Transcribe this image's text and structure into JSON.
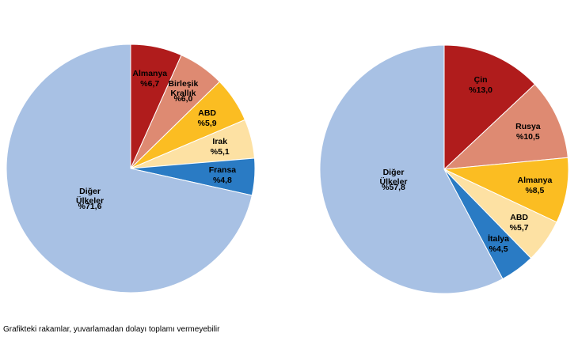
{
  "chart_data": [
    {
      "type": "pie",
      "categories": [
        "Almanya",
        "Birleşik Krallık",
        "ABD",
        "Irak",
        "Fransa",
        "Diğer Ülkeler"
      ],
      "values": [
        6.7,
        6.0,
        5.9,
        5.1,
        4.8,
        71.6
      ],
      "value_labels": [
        "%6,7",
        "%6,0",
        "%5,9",
        "%5,1",
        "%4,8",
        "%71,6"
      ],
      "colors": [
        "#b01c1c",
        "#de8a72",
        "#fbbd22",
        "#fde1a3",
        "#2a7bc4",
        "#a8c1e4"
      ]
    },
    {
      "type": "pie",
      "categories": [
        "Çin",
        "Rusya",
        "Almanya",
        "ABD",
        "İtalya",
        "Diğer Ülkeler"
      ],
      "values": [
        13.0,
        10.5,
        8.5,
        5.7,
        4.5,
        57.8
      ],
      "value_labels": [
        "%13,0",
        "%10,5",
        "%8,5",
        "%5,7",
        "%4,5",
        "%57,8"
      ],
      "colors": [
        "#b01c1c",
        "#de8a72",
        "#fbbd22",
        "#fde1a3",
        "#2a7bc4",
        "#a8c1e4"
      ]
    }
  ],
  "note": "Grafikteki rakamlar, yuvarlamadan dolayı toplamı vermeyebilir"
}
